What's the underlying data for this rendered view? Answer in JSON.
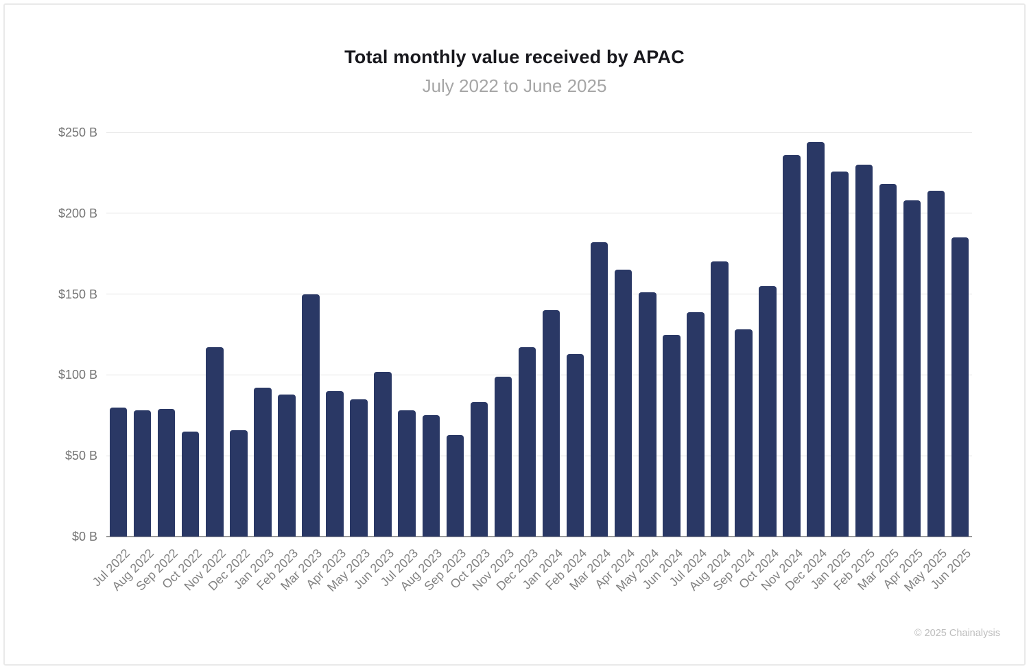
{
  "card": {
    "footer": "© 2025 Chainalysis"
  },
  "colors": {
    "bar": "#2A3865",
    "title": "#18181d",
    "subtitle": "#a6a6a6",
    "axis_label": "#757575",
    "gridline": "#e3e3e3",
    "baseline": "#9a9a9a",
    "footer": "#bdbdbd"
  },
  "chart_data": {
    "type": "bar",
    "title": "Total monthly value received by APAC",
    "subtitle": "July 2022 to June 2025",
    "unit": "USD billions",
    "categories": [
      "Jul 2022",
      "Aug 2022",
      "Sep 2022",
      "Oct 2022",
      "Nov 2022",
      "Dec 2022",
      "Jan 2023",
      "Feb 2023",
      "Mar 2023",
      "Apr 2023",
      "May 2023",
      "Jun 2023",
      "Jul 2023",
      "Aug 2023",
      "Sep 2023",
      "Oct 2023",
      "Nov 2023",
      "Dec 2023",
      "Jan 2024",
      "Feb 2024",
      "Mar 2024",
      "Apr 2024",
      "May 2024",
      "Jun 2024",
      "Jul 2024",
      "Aug 2024",
      "Sep 2024",
      "Oct 2024",
      "Nov 2024",
      "Dec 2024",
      "Jan 2025",
      "Feb 2025",
      "Mar 2025",
      "Apr 2025",
      "May 2025",
      "Jun 2025"
    ],
    "values": [
      80,
      78,
      79,
      65,
      117,
      66,
      92,
      88,
      150,
      90,
      85,
      102,
      78,
      75,
      63,
      83,
      99,
      117,
      140,
      113,
      182,
      165,
      151,
      125,
      139,
      170,
      128,
      155,
      236,
      244,
      226,
      230,
      218,
      208,
      214,
      185
    ],
    "xlabel": "",
    "ylabel": "",
    "ylim": [
      0,
      250
    ],
    "yticks": [
      {
        "value": 0,
        "label": "$0 B"
      },
      {
        "value": 50,
        "label": "$50 B"
      },
      {
        "value": 100,
        "label": "$100 B"
      },
      {
        "value": 150,
        "label": "$150 B"
      },
      {
        "value": 200,
        "label": "$200 B"
      },
      {
        "value": 250,
        "label": "$250 B"
      }
    ],
    "grid": "horizontal",
    "legend": "none",
    "bar_color": "#2A3865"
  }
}
